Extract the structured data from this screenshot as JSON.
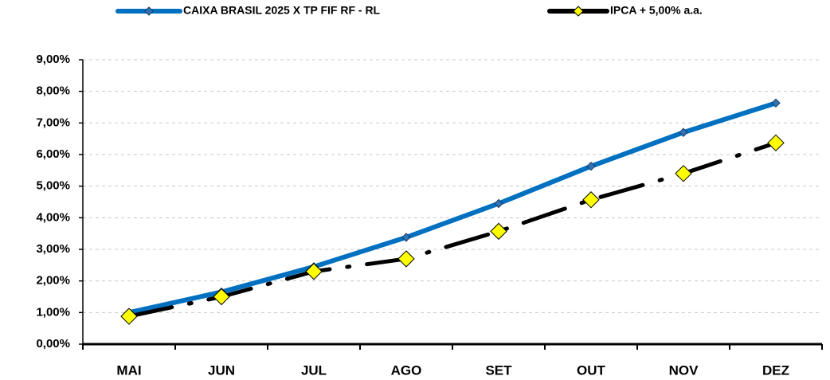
{
  "chart_data": {
    "type": "line",
    "categories": [
      "MAI",
      "JUN",
      "JUL",
      "AGO",
      "SET",
      "OUT",
      "NOV",
      "DEZ"
    ],
    "series": [
      {
        "name": "CAIXA BRASIL 2025 X TP FIF RF - RL",
        "color": "#0070c0",
        "marker_color": "#2e75b6",
        "values": [
          1.0,
          1.65,
          2.45,
          3.38,
          4.45,
          5.63,
          6.7,
          7.63
        ]
      },
      {
        "name": "IPCA + 5,00% a.a.",
        "color": "#000000",
        "marker_color": "#ffff00",
        "values": [
          0.88,
          1.5,
          2.3,
          2.7,
          3.57,
          4.57,
          5.4,
          6.37
        ]
      }
    ],
    "ylim": [
      0,
      9
    ],
    "yticks": [
      {
        "value": 0,
        "label": "0,00%"
      },
      {
        "value": 1,
        "label": "1,00%"
      },
      {
        "value": 2,
        "label": "2,00%"
      },
      {
        "value": 3,
        "label": "3,00%"
      },
      {
        "value": 4,
        "label": "4,00%"
      },
      {
        "value": 5,
        "label": "5,00%"
      },
      {
        "value": 6,
        "label": "6,00%"
      },
      {
        "value": 7,
        "label": "7,00%"
      },
      {
        "value": 8,
        "label": "8,00%"
      },
      {
        "value": 9,
        "label": "9,00%"
      }
    ],
    "grid": true,
    "legend": "top"
  }
}
